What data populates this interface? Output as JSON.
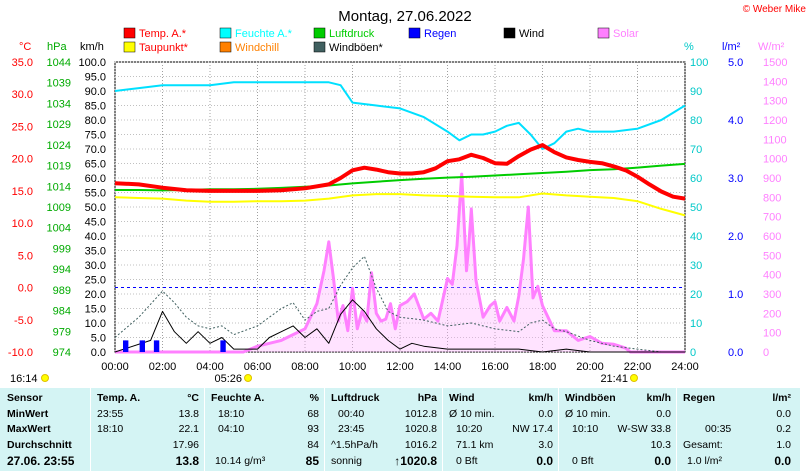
{
  "chart_data": {
    "type": "line",
    "title": "Montag, 27.06.2022",
    "credit": "© Weber Mike",
    "legend": [
      {
        "label": "Temp. A.*",
        "color": "#ff0000"
      },
      {
        "label": "Feuchte A.*",
        "color": "#00ffff"
      },
      {
        "label": "Luftdruck",
        "color": "#00cc00"
      },
      {
        "label": "Regen",
        "color": "#0000ff"
      },
      {
        "label": "Wind",
        "color": "#000000"
      },
      {
        "label": "Solar",
        "color": "#ff80ff"
      },
      {
        "label": "Taupunkt*",
        "color": "#ffff00"
      },
      {
        "label": "Windchill",
        "color": "#ff8000"
      },
      {
        "label": "Windböen*",
        "color": "#406060"
      }
    ],
    "axis_units": {
      "temp": "°C",
      "pressure": "hPa",
      "wind": "km/h",
      "humidity": "%",
      "rain": "l/m²",
      "solar": "W/m²"
    },
    "axes": {
      "temp": {
        "min": -10,
        "max": 35,
        "ticks": [
          "35.0",
          "30.0",
          "25.0",
          "20.0",
          "15.0",
          "10.0",
          "5.0",
          "0.0",
          "-5.0",
          "-10.0"
        ]
      },
      "pressure": {
        "min": 974,
        "max": 1044,
        "ticks": [
          "1044",
          "1039",
          "1034",
          "1029",
          "1024",
          "1019",
          "1014",
          "1009",
          "1004",
          "999",
          "994",
          "989",
          "984",
          "979",
          "974"
        ]
      },
      "wind": {
        "min": 0,
        "max": 100,
        "ticks": [
          "100.0",
          "95.0",
          "90.0",
          "85.0",
          "80.0",
          "75.0",
          "70.0",
          "65.0",
          "60.0",
          "55.0",
          "50.0",
          "45.0",
          "40.0",
          "35.0",
          "30.0",
          "25.0",
          "20.0",
          "15.0",
          "10.0",
          "5.0",
          "0.0"
        ]
      },
      "humidity": {
        "min": 0,
        "max": 100,
        "ticks": [
          "100",
          "90",
          "80",
          "70",
          "60",
          "50",
          "40",
          "30",
          "20",
          "10",
          "0"
        ]
      },
      "rain": {
        "min": 0,
        "max": 5,
        "ticks": [
          "5.0",
          "4.0",
          "3.0",
          "2.0",
          "1.0",
          "0.0"
        ]
      },
      "solar": {
        "min": 0,
        "max": 1500,
        "ticks": [
          "1500",
          "1400",
          "1300",
          "1200",
          "1100",
          "1000",
          "900",
          "800",
          "700",
          "600",
          "500",
          "400",
          "300",
          "200",
          "100",
          "0"
        ]
      }
    },
    "x_ticks": [
      "00:00",
      "02:00",
      "04:00",
      "06:00",
      "08:00",
      "10:00",
      "12:00",
      "14:00",
      "16:00",
      "18:00",
      "20:00",
      "22:00",
      "24:00"
    ],
    "sun": {
      "rise": "05:26",
      "set": "21:41",
      "daylength": "16:14"
    },
    "series": {
      "temp": {
        "x": [
          0,
          1,
          2,
          3,
          4,
          5,
          6,
          7,
          8,
          9,
          9.5,
          10,
          10.5,
          11,
          11.5,
          12,
          12.5,
          13,
          13.5,
          14,
          14.5,
          15,
          15.5,
          16,
          16.5,
          17,
          17.5,
          18,
          18.5,
          19,
          19.5,
          20,
          20.5,
          21,
          21.5,
          22,
          22.5,
          23,
          23.5,
          24
        ],
        "y": [
          16.2,
          16,
          15.5,
          15.1,
          15,
          15,
          15,
          15.1,
          15.4,
          16,
          17,
          18.2,
          18.6,
          18.3,
          17.9,
          17.7,
          17.7,
          17.9,
          18.5,
          19.6,
          19.9,
          20.6,
          20.1,
          19.3,
          19.2,
          20.4,
          21.4,
          22.1,
          21,
          20.2,
          19.8,
          19.5,
          19.3,
          18.8,
          18.2,
          17.2,
          16,
          14.9,
          14.1,
          13.8
        ]
      },
      "dewpoint": {
        "x": [
          0,
          1,
          2,
          3,
          4,
          5,
          6,
          7,
          8,
          9,
          10,
          11,
          12,
          13,
          14,
          15,
          16,
          17,
          18,
          19,
          20,
          21,
          22,
          23,
          24
        ],
        "y": [
          14,
          13.9,
          13.8,
          13.5,
          13.3,
          13.3,
          13.4,
          13.4,
          13.5,
          13.8,
          14.3,
          14.5,
          14.5,
          14.3,
          14.2,
          14.1,
          14,
          14,
          14.6,
          14.3,
          14.1,
          13.9,
          13.4,
          12.2,
          11.2
        ]
      },
      "humidity": {
        "x": [
          0,
          1,
          2,
          3,
          4,
          5,
          6,
          7,
          8,
          9,
          9.5,
          10,
          11,
          12,
          13,
          14,
          14.5,
          15,
          15.5,
          16,
          16.5,
          17,
          17.5,
          18,
          18.5,
          19,
          19.5,
          20,
          21,
          22,
          23,
          24
        ],
        "y": [
          90,
          91,
          92,
          92,
          92,
          93,
          93,
          93,
          93,
          93,
          92,
          86,
          85,
          84,
          81,
          76,
          73,
          75,
          75,
          76,
          78,
          79,
          75,
          70,
          72,
          76,
          77,
          76,
          76,
          77,
          80,
          85
        ]
      },
      "pressure": {
        "x": [
          0,
          1,
          2,
          3,
          4,
          5,
          6,
          7,
          8,
          9,
          10,
          11,
          12,
          13,
          14,
          15,
          16,
          17,
          18,
          19,
          20,
          21,
          22,
          23,
          24
        ],
        "y": [
          1013.1,
          1013.1,
          1013,
          1013.1,
          1013.3,
          1013.3,
          1013.4,
          1013.6,
          1013.9,
          1014.2,
          1014.7,
          1015.1,
          1015.5,
          1015.8,
          1016.1,
          1016.3,
          1016.6,
          1016.9,
          1017.2,
          1017.5,
          1017.9,
          1018.1,
          1018.5,
          1019,
          1019.4
        ]
      },
      "solar": {
        "x": [
          0,
          5.4,
          6,
          7,
          7.5,
          8,
          8.5,
          8.8,
          9,
          9.2,
          9.4,
          9.6,
          9.8,
          10,
          10.2,
          10.4,
          10.6,
          10.8,
          11,
          11.2,
          11.4,
          11.6,
          11.8,
          12,
          12.3,
          12.6,
          13,
          13.3,
          13.6,
          14,
          14.2,
          14.4,
          14.6,
          14.8,
          14.9,
          15,
          15.2,
          15.5,
          15.8,
          16,
          16.2,
          16.5,
          16.8,
          17,
          17.2,
          17.4,
          17.6,
          17.8,
          18,
          18.5,
          19,
          19.5,
          20,
          20.5,
          21,
          21.5,
          21.7,
          24
        ],
        "y": [
          0,
          0,
          30,
          60,
          90,
          120,
          250,
          420,
          570,
          380,
          160,
          240,
          110,
          330,
          120,
          210,
          160,
          410,
          200,
          160,
          170,
          250,
          120,
          240,
          260,
          300,
          170,
          200,
          160,
          380,
          350,
          550,
          920,
          420,
          560,
          740,
          370,
          180,
          240,
          260,
          160,
          230,
          160,
          290,
          480,
          750,
          280,
          340,
          240,
          110,
          110,
          60,
          80,
          45,
          40,
          20,
          0,
          0
        ]
      },
      "wind": {
        "x": [
          0,
          1.5,
          2,
          2.5,
          3,
          3.5,
          4,
          4.5,
          5,
          6,
          6.5,
          7,
          7.5,
          8,
          8.5,
          9,
          9.5,
          10,
          10.5,
          11,
          11.5,
          12,
          12.5,
          13,
          14,
          15,
          16,
          17,
          18,
          19,
          20,
          21,
          22,
          23,
          24
        ],
        "y": [
          0,
          4,
          14,
          7,
          3,
          7,
          3,
          5,
          1,
          1,
          5,
          7,
          9,
          5,
          8,
          3,
          13,
          18,
          14,
          8,
          4,
          1,
          3,
          2,
          1,
          1,
          1,
          1,
          0,
          1,
          0,
          0,
          0,
          0,
          0
        ]
      },
      "gusts": {
        "x": [
          0,
          1,
          2,
          2.5,
          3,
          3.5,
          4,
          4.5,
          5,
          6,
          6.5,
          7,
          7.5,
          8,
          8.5,
          9,
          9.5,
          10,
          10.5,
          11,
          11.5,
          12,
          13,
          14,
          15,
          16,
          17,
          17.5,
          18,
          18.5,
          19,
          20,
          21,
          22,
          23,
          24
        ],
        "y": [
          5,
          12,
          21,
          17,
          12,
          9,
          8,
          9,
          6,
          9,
          12,
          15,
          17,
          11,
          14,
          15,
          23,
          29,
          33,
          22,
          14,
          12,
          11,
          9,
          10,
          8,
          7,
          10,
          11,
          8,
          7,
          4,
          2,
          1,
          0,
          0
        ]
      },
      "rain_bars": {
        "x": [
          0.4,
          0.5,
          1.1,
          1.2,
          1.7,
          1.8,
          4.5,
          4.6
        ],
        "y": [
          0.2,
          0.2,
          0.2,
          0.2,
          0.2,
          0.2,
          0.2,
          0.2
        ]
      }
    }
  },
  "table": {
    "labels": {
      "sensor": "Sensor",
      "min": "MinWert",
      "max": "MaxWert",
      "avg": "Durchschnitt",
      "now": "27.06. 23:55"
    },
    "temp": {
      "h": "Temp. A.",
      "u": "°C",
      "min_t": "23:55",
      "min_v": "13.8",
      "max_t": "18:10",
      "max_v": "22.1",
      "avg": "17.96",
      "now": "13.8"
    },
    "hum": {
      "h": "Feuchte A.",
      "u": "%",
      "min_t": "18:10",
      "min_v": "68",
      "max_t": "04:10",
      "max_v": "93",
      "avg": "84",
      "now_l": "10.14 g/m³",
      "now": "85"
    },
    "press": {
      "h": "Luftdruck",
      "u": "hPa",
      "min_t": "00:40",
      "min_v": "1012.8",
      "max_t": "23:45",
      "max_v": "1020.8",
      "avg_l": "^1.5hPa/h",
      "avg": "1016.2",
      "now_l": "sonnig",
      "now": "↑1020.8"
    },
    "wind": {
      "h": "Wind",
      "u": "km/h",
      "min_l": "Ø 10 min.",
      "min_v": "0.0",
      "max_t": "10:20",
      "max_v": "NW 17.4",
      "avg_l": "71.1 km",
      "avg": "3.0",
      "now_l": "0 Bft",
      "now": "0.0"
    },
    "gust": {
      "h": "Windböen",
      "u": "km/h",
      "min_l": "Ø 10 min.",
      "min_v": "0.0",
      "max_t": "10:10",
      "max_v": "W-SW 33.8",
      "avg": "10.3",
      "now_l": "0 Bft",
      "now": "0.0"
    },
    "rain": {
      "h": "Regen",
      "u": "l/m²",
      "min_v": "0.0",
      "max_t": "00:35",
      "max_v": "0.2",
      "avg_l": "Gesamt:",
      "avg": "1.0",
      "now": "1.0 l/m²",
      "now_v": "0.0"
    }
  }
}
